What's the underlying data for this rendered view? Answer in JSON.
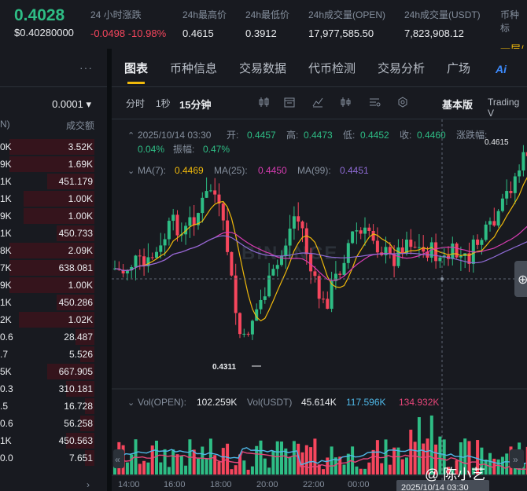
{
  "ticker": {
    "last_price": "0.4028",
    "usd_price": "$0.40280000",
    "stats": [
      {
        "label": "24 小时涨跌",
        "value": "-0.0498 -10.98%",
        "neg": true
      },
      {
        "label": "24h最高价",
        "value": "0.4615"
      },
      {
        "label": "24h最低价",
        "value": "0.3912"
      },
      {
        "label": "24h成交量(OPEN)",
        "value": "17,977,585.50"
      },
      {
        "label": "24h成交量(USDT)",
        "value": "7,823,908.12"
      },
      {
        "label": "币种标",
        "value": "一层/"
      }
    ]
  },
  "orderbook": {
    "menu": "···",
    "precision": "0.0001 ▾",
    "col_left": "N)",
    "col_right": "成交额",
    "rows": [
      {
        "l": "0K",
        "r": "3.52K",
        "bg": 0.9
      },
      {
        "l": "9K",
        "r": "1.69K",
        "bg": 0.9
      },
      {
        "l": "1K",
        "r": "451.179",
        "bg": 0.5
      },
      {
        "l": "1K",
        "r": "1.00K",
        "bg": 0.75
      },
      {
        "l": "9K",
        "r": "1.00K",
        "bg": 0.75
      },
      {
        "l": "1K",
        "r": "450.733",
        "bg": 0.4
      },
      {
        "l": "8K",
        "r": "2.09K",
        "bg": 0.9
      },
      {
        "l": "7K",
        "r": "638.081",
        "bg": 0.9
      },
      {
        "l": "9K",
        "r": "1.00K",
        "bg": 0.9
      },
      {
        "l": "1K",
        "r": "450.286",
        "bg": 0.4
      },
      {
        "l": "2K",
        "r": "1.02K",
        "bg": 0.8
      },
      {
        "l": "0.6",
        "r": "28.487",
        "bg": 0.2
      },
      {
        "l": ".7",
        "r": "5.526",
        "bg": 0.15
      },
      {
        "l": "5K",
        "r": "667.905",
        "bg": 0.5
      },
      {
        "l": "0.3",
        "r": "310.181",
        "bg": 0.3
      },
      {
        "l": ".5",
        "r": "16.728",
        "bg": 0.1
      },
      {
        "l": "0.6",
        "r": "56.258",
        "bg": 0.15
      },
      {
        "l": "1K",
        "r": "450.563",
        "bg": 0.3
      },
      {
        "l": "0.0",
        "r": "7.651",
        "bg": 0.1
      }
    ],
    "arrow": "›"
  },
  "tabs": [
    "图表",
    "币种信息",
    "交易数据",
    "代币检测",
    "交易分析",
    "广场"
  ],
  "ai_label": "Ai",
  "toolbar": {
    "intervals": [
      "分时",
      "1秒",
      "15分钟"
    ],
    "basic": "基本版",
    "tv": "Trading V"
  },
  "ohlc": {
    "date": "2025/10/14 03:30",
    "open_label": "开:",
    "open": "0.4457",
    "high_label": "高:",
    "high": "0.4473",
    "low_label": "低:",
    "low": "0.4452",
    "close_label": "收:",
    "close": "0.4460",
    "chg_label": "涨跌幅:",
    "chg": "0.04%",
    "amp_label": "振幅:",
    "amp": "0.47%"
  },
  "ma": {
    "ma7_label": "MA(7):",
    "ma7": "0.4469",
    "ma25_label": "MA(25):",
    "ma25": "0.4450",
    "ma99_label": "MA(99):",
    "ma99": "0.4451"
  },
  "vol": {
    "open_label": "Vol(OPEN):",
    "open": "102.259K",
    "usdt_label": "Vol(USDT)",
    "usdt": "45.614K",
    "ma1": "117.596K",
    "ma2": "134.932K"
  },
  "chart_marks": {
    "high": "0.4615",
    "low": "0.4311"
  },
  "xaxis": [
    "14:00",
    "16:00",
    "18:00",
    "20:00",
    "22:00",
    "00:00"
  ],
  "crosshair_time": "2025/10/14 03:30",
  "watermark": "BINANCE",
  "wm_user": "@ 陈小艺",
  "colors": {
    "up": "#2ebd85",
    "down": "#f6465d",
    "ma7": "#f0b90b",
    "ma25": "#d63cb1",
    "ma99": "#8f6bd6",
    "vol_ma1": "#4fb8e8",
    "vol_ma2": "#e8467a"
  }
}
